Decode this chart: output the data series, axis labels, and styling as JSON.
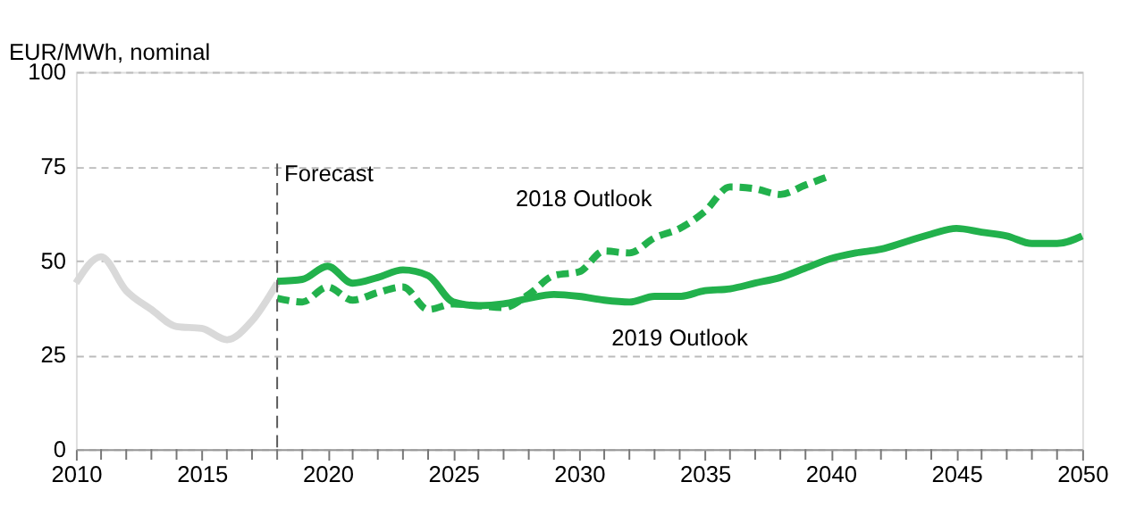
{
  "chart_data": {
    "type": "line",
    "ylabel": "EUR/MWh, nominal",
    "xlim": [
      2010,
      2050
    ],
    "ylim": [
      0,
      100
    ],
    "yticks": [
      0,
      25,
      50,
      75,
      100
    ],
    "xticks": [
      2010,
      {
        "value": 2011,
        "label": null
      },
      {
        "value": 2012,
        "label": null
      },
      {
        "value": 2013,
        "label": null
      },
      {
        "value": 2014,
        "label": null
      },
      2015,
      {
        "value": 2016,
        "label": null
      },
      {
        "value": 2017,
        "label": null
      },
      {
        "value": 2018,
        "label": null
      },
      {
        "value": 2019,
        "label": null
      },
      2020,
      {
        "value": 2021,
        "label": null
      },
      {
        "value": 2022,
        "label": null
      },
      {
        "value": 2023,
        "label": null
      },
      {
        "value": 2024,
        "label": null
      },
      2025,
      {
        "value": 2026,
        "label": null
      },
      {
        "value": 2027,
        "label": null
      },
      {
        "value": 2028,
        "label": null
      },
      {
        "value": 2029,
        "label": null
      },
      2030,
      {
        "value": 2031,
        "label": null
      },
      {
        "value": 2032,
        "label": null
      },
      {
        "value": 2033,
        "label": null
      },
      {
        "value": 2034,
        "label": null
      },
      2035,
      {
        "value": 2036,
        "label": null
      },
      {
        "value": 2037,
        "label": null
      },
      {
        "value": 2038,
        "label": null
      },
      {
        "value": 2039,
        "label": null
      },
      2040,
      {
        "value": 2041,
        "label": null
      },
      {
        "value": 2042,
        "label": null
      },
      {
        "value": 2043,
        "label": null
      },
      {
        "value": 2044,
        "label": null
      },
      2045,
      {
        "value": 2046,
        "label": null
      },
      {
        "value": 2047,
        "label": null
      },
      {
        "value": 2048,
        "label": null
      },
      {
        "value": 2049,
        "label": null
      },
      2050
    ],
    "grid": "y",
    "legend": false,
    "marker": "none",
    "ref_lines": [
      {
        "axis": "x",
        "value": 2018,
        "label": "Forecast",
        "color": "#595959",
        "line_style": "dashed"
      }
    ],
    "series": [
      {
        "color": "#d9d9d9",
        "line_style": "solid",
        "x": [
          2010,
          2011,
          2012,
          2013,
          2014,
          2015,
          2016,
          2017,
          2018
        ],
        "values": [
          44,
          51,
          42,
          37,
          32.5,
          32,
          29,
          34,
          44
        ]
      },
      {
        "name": "2019 Outlook",
        "color": "#22b14c",
        "line_style": "solid",
        "x": [
          2018,
          2019,
          2020,
          2021,
          2022,
          2023,
          2024,
          2025,
          2026,
          2027,
          2028,
          2029,
          2030,
          2031,
          2032,
          2033,
          2034,
          2035,
          2036,
          2037,
          2038,
          2039,
          2040,
          2041,
          2042,
          2043,
          2044,
          2045,
          2046,
          2047,
          2048,
          2049,
          2050
        ],
        "values": [
          44.5,
          45,
          48.5,
          44,
          45.5,
          47.5,
          46,
          39,
          38,
          38.5,
          40,
          41,
          40.5,
          39.5,
          39,
          40.5,
          40.5,
          42,
          42.5,
          44,
          45.5,
          48,
          50.5,
          52,
          53,
          55,
          57,
          58.5,
          57.5,
          56.5,
          54.5,
          54.5,
          56.5
        ]
      },
      {
        "name": "2018 Outlook",
        "color": "#22b14c",
        "line_style": "dashed",
        "x": [
          2018,
          2019,
          2020,
          2021,
          2022,
          2023,
          2024,
          2025,
          2026,
          2027,
          2028,
          2029,
          2030,
          2031,
          2032,
          2033,
          2034,
          2035,
          2036,
          2037,
          2038,
          2039,
          2040
        ],
        "values": [
          40,
          39,
          43,
          39.5,
          41.5,
          43,
          37,
          38.5,
          38,
          37.5,
          41,
          46,
          47,
          52.5,
          52,
          56,
          58.5,
          63,
          69.5,
          69,
          67.5,
          70,
          72.5
        ]
      }
    ]
  }
}
